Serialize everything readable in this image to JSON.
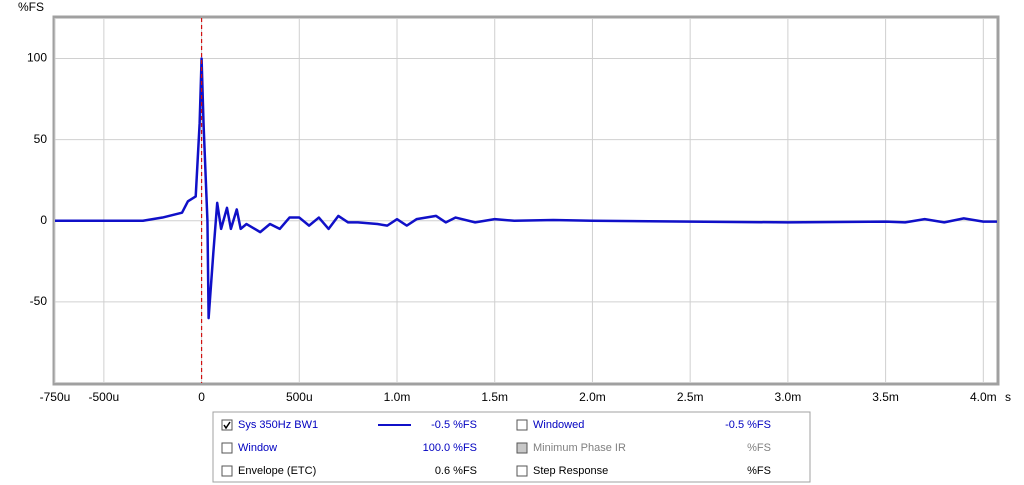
{
  "chart_data": {
    "type": "line",
    "y_label": "%FS",
    "x_label": "s",
    "x": [
      -0.00075,
      -0.0003,
      -0.0002,
      -0.0001,
      -7e-05,
      -3e-05,
      -1e-05,
      0,
      1e-05,
      3e-05,
      3.6e-05,
      6e-05,
      8e-05,
      0.0001,
      0.00013,
      0.00015,
      0.00018,
      0.0002,
      0.00023,
      0.0003,
      0.00035,
      0.0004,
      0.00045,
      0.0005,
      0.00055,
      0.0006,
      0.00065,
      0.0007,
      0.00075,
      0.0008,
      0.0009,
      0.00095,
      0.001,
      0.00105,
      0.0011,
      0.0012,
      0.00125,
      0.0013,
      0.0014,
      0.0015,
      0.0016,
      0.0018,
      0.002,
      0.0025,
      0.003,
      0.0035,
      0.0036,
      0.0037,
      0.0038,
      0.0039,
      0.004,
      0.00407
    ],
    "series": [
      {
        "name": "Sys 350Hz BW1",
        "color": "#1010c8",
        "values": [
          0,
          0,
          2,
          5,
          12,
          15,
          60,
          100,
          60,
          0,
          -60,
          -20,
          11,
          -5,
          8,
          -5,
          7,
          -5,
          -2,
          -7,
          -2,
          -5,
          2,
          2,
          -3,
          2,
          -5,
          3,
          -1,
          -1,
          -2,
          -3,
          1,
          -3,
          1,
          3,
          -1,
          2,
          -1,
          1,
          0,
          0.5,
          0,
          -0.5,
          -1,
          -0.5,
          -1,
          1,
          -1,
          1.5,
          -0.5,
          -0.5
        ]
      }
    ],
    "cursor_x": 0,
    "cursor_color": "#d01010",
    "xlim": [
      -0.00075,
      0.00407
    ],
    "ylim": [
      -100,
      125
    ],
    "xticks": [
      {
        "value": -0.00075,
        "label": "-750u"
      },
      {
        "value": -0.0005,
        "label": "-500u"
      },
      0,
      {
        "value": 0.0005,
        "label": "500u"
      },
      {
        "value": 0.001,
        "label": "1.0m"
      },
      {
        "value": 0.0015,
        "label": "1.5m"
      },
      {
        "value": 0.002,
        "label": "2.0m"
      },
      {
        "value": 0.0025,
        "label": "2.5m"
      },
      {
        "value": 0.003,
        "label": "3.0m"
      },
      {
        "value": 0.0035,
        "label": "3.5m"
      },
      {
        "value": 0.004,
        "label": "4.0m"
      }
    ],
    "yticks": [
      100,
      50,
      0,
      -50
    ],
    "grid": true
  },
  "panel": {
    "left": [
      {
        "checked": true,
        "value": "-0.5 %FS"
      },
      {
        "label": "Window",
        "checked": false,
        "value": "100.0 %FS"
      },
      {
        "label": "Envelope (ETC)",
        "checked": false,
        "value": "0.6 %FS"
      }
    ],
    "right": [
      {
        "label": "Windowed",
        "checked": false,
        "value": "-0.5 %FS"
      },
      {
        "label": "Minimum Phase IR",
        "checked": false,
        "value": "%FS"
      },
      {
        "label": "Step Response",
        "checked": false,
        "value": "%FS"
      }
    ]
  }
}
